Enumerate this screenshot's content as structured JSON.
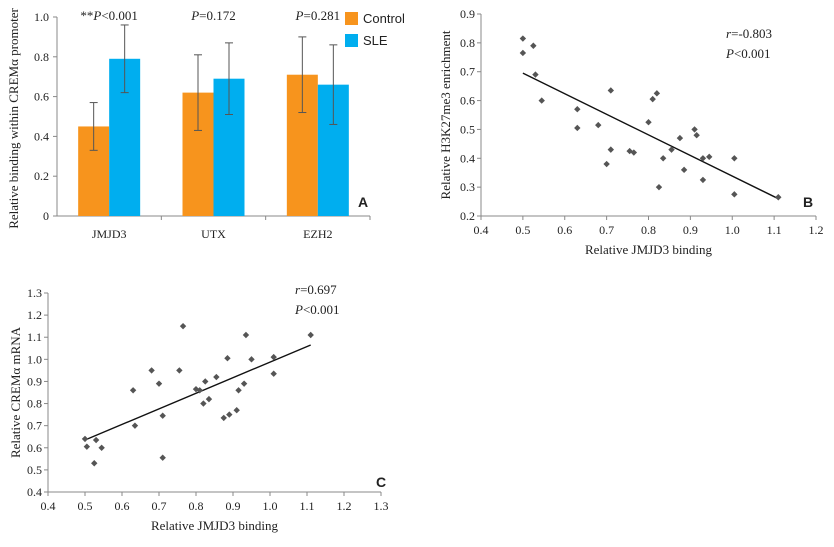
{
  "chart_data": [
    {
      "panel": "A",
      "type": "bar",
      "categories": [
        "JMJD3",
        "UTX",
        "EZH2"
      ],
      "series": [
        {
          "name": "Control",
          "values": [
            0.45,
            0.62,
            0.71
          ],
          "errors": [
            0.12,
            0.19,
            0.19
          ],
          "color": "#F7941D"
        },
        {
          "name": "SLE",
          "values": [
            0.79,
            0.69,
            0.66
          ],
          "errors": [
            0.17,
            0.18,
            0.2
          ],
          "color": "#00AEEF"
        }
      ],
      "ylabel": "Relative binding within CREMα promoter",
      "ylim": [
        0,
        1.0
      ],
      "yticks": [
        "0",
        "0.2",
        "0.4",
        "0.6",
        "0.8",
        "1.0"
      ],
      "annotations": [
        {
          "prefix": "**",
          "stat": "P",
          "text": "<0.001"
        },
        {
          "prefix": "",
          "stat": "P",
          "text": "=0.172"
        },
        {
          "prefix": "",
          "stat": "P",
          "text": "=0.281"
        }
      ],
      "legend_position": "top-right"
    },
    {
      "panel": "B",
      "type": "scatter",
      "xlabel": "Relative JMJD3 binding",
      "ylabel": "Relative H3K27me3 enrichment",
      "xlim": [
        0.4,
        1.2
      ],
      "ylim": [
        0.2,
        0.9
      ],
      "xticks": [
        "0.4",
        "0.5",
        "0.6",
        "0.7",
        "0.8",
        "0.9",
        "1.0",
        "1.1",
        "1.2"
      ],
      "yticks": [
        "0.2",
        "0.3",
        "0.4",
        "0.5",
        "0.6",
        "0.7",
        "0.8",
        "0.9"
      ],
      "x": [
        0.5,
        0.5,
        0.525,
        0.53,
        0.545,
        0.63,
        0.63,
        0.71,
        0.68,
        0.71,
        0.7,
        0.755,
        0.765,
        0.8,
        0.81,
        0.82,
        0.825,
        0.835,
        0.855,
        0.875,
        0.885,
        0.91,
        0.915,
        0.93,
        0.93,
        0.945,
        1.005,
        1.005,
        1.11
      ],
      "y": [
        0.815,
        0.765,
        0.79,
        0.69,
        0.6,
        0.57,
        0.505,
        0.635,
        0.515,
        0.43,
        0.38,
        0.425,
        0.42,
        0.525,
        0.605,
        0.625,
        0.3,
        0.4,
        0.43,
        0.47,
        0.36,
        0.5,
        0.48,
        0.4,
        0.325,
        0.405,
        0.4,
        0.275,
        0.265
      ],
      "trend": {
        "x": [
          0.5,
          1.11
        ],
        "y": [
          0.695,
          0.26
        ]
      },
      "annotations": [
        {
          "stat": "r",
          "text": "=-0.803"
        },
        {
          "stat": "P",
          "text": "<0.001"
        }
      ]
    },
    {
      "panel": "C",
      "type": "scatter",
      "xlabel": "Relative JMJD3 binding",
      "ylabel": "Relative CREMα mRNA",
      "xlim": [
        0.4,
        1.3
      ],
      "ylim": [
        0.4,
        1.3
      ],
      "xticks": [
        "0.4",
        "0.5",
        "0.6",
        "0.7",
        "0.8",
        "0.9",
        "1.0",
        "1.1",
        "1.2",
        "1.3"
      ],
      "yticks": [
        "0.4",
        "0.5",
        "0.6",
        "0.7",
        "0.8",
        "0.9",
        "1.0",
        "1.1",
        "1.2",
        "1.3"
      ],
      "x": [
        0.5,
        0.505,
        0.525,
        0.53,
        0.545,
        0.63,
        0.635,
        0.68,
        0.7,
        0.71,
        0.71,
        0.755,
        0.765,
        0.8,
        0.81,
        0.82,
        0.825,
        0.835,
        0.855,
        0.875,
        0.885,
        0.89,
        0.91,
        0.915,
        0.93,
        0.935,
        0.95,
        1.01,
        1.01,
        1.11
      ],
      "y": [
        0.64,
        0.605,
        0.53,
        0.635,
        0.6,
        0.86,
        0.7,
        0.95,
        0.89,
        0.745,
        0.555,
        0.95,
        1.15,
        0.865,
        0.86,
        0.8,
        0.9,
        0.82,
        0.92,
        0.735,
        1.005,
        0.75,
        0.77,
        0.86,
        0.89,
        1.11,
        1.0,
        1.01,
        0.935,
        1.11
      ],
      "trend": {
        "x": [
          0.5,
          1.11
        ],
        "y": [
          0.635,
          1.065
        ]
      },
      "annotations": [
        {
          "stat": "r",
          "text": "=0.697"
        },
        {
          "stat": "P",
          "text": "<0.001"
        }
      ]
    }
  ]
}
